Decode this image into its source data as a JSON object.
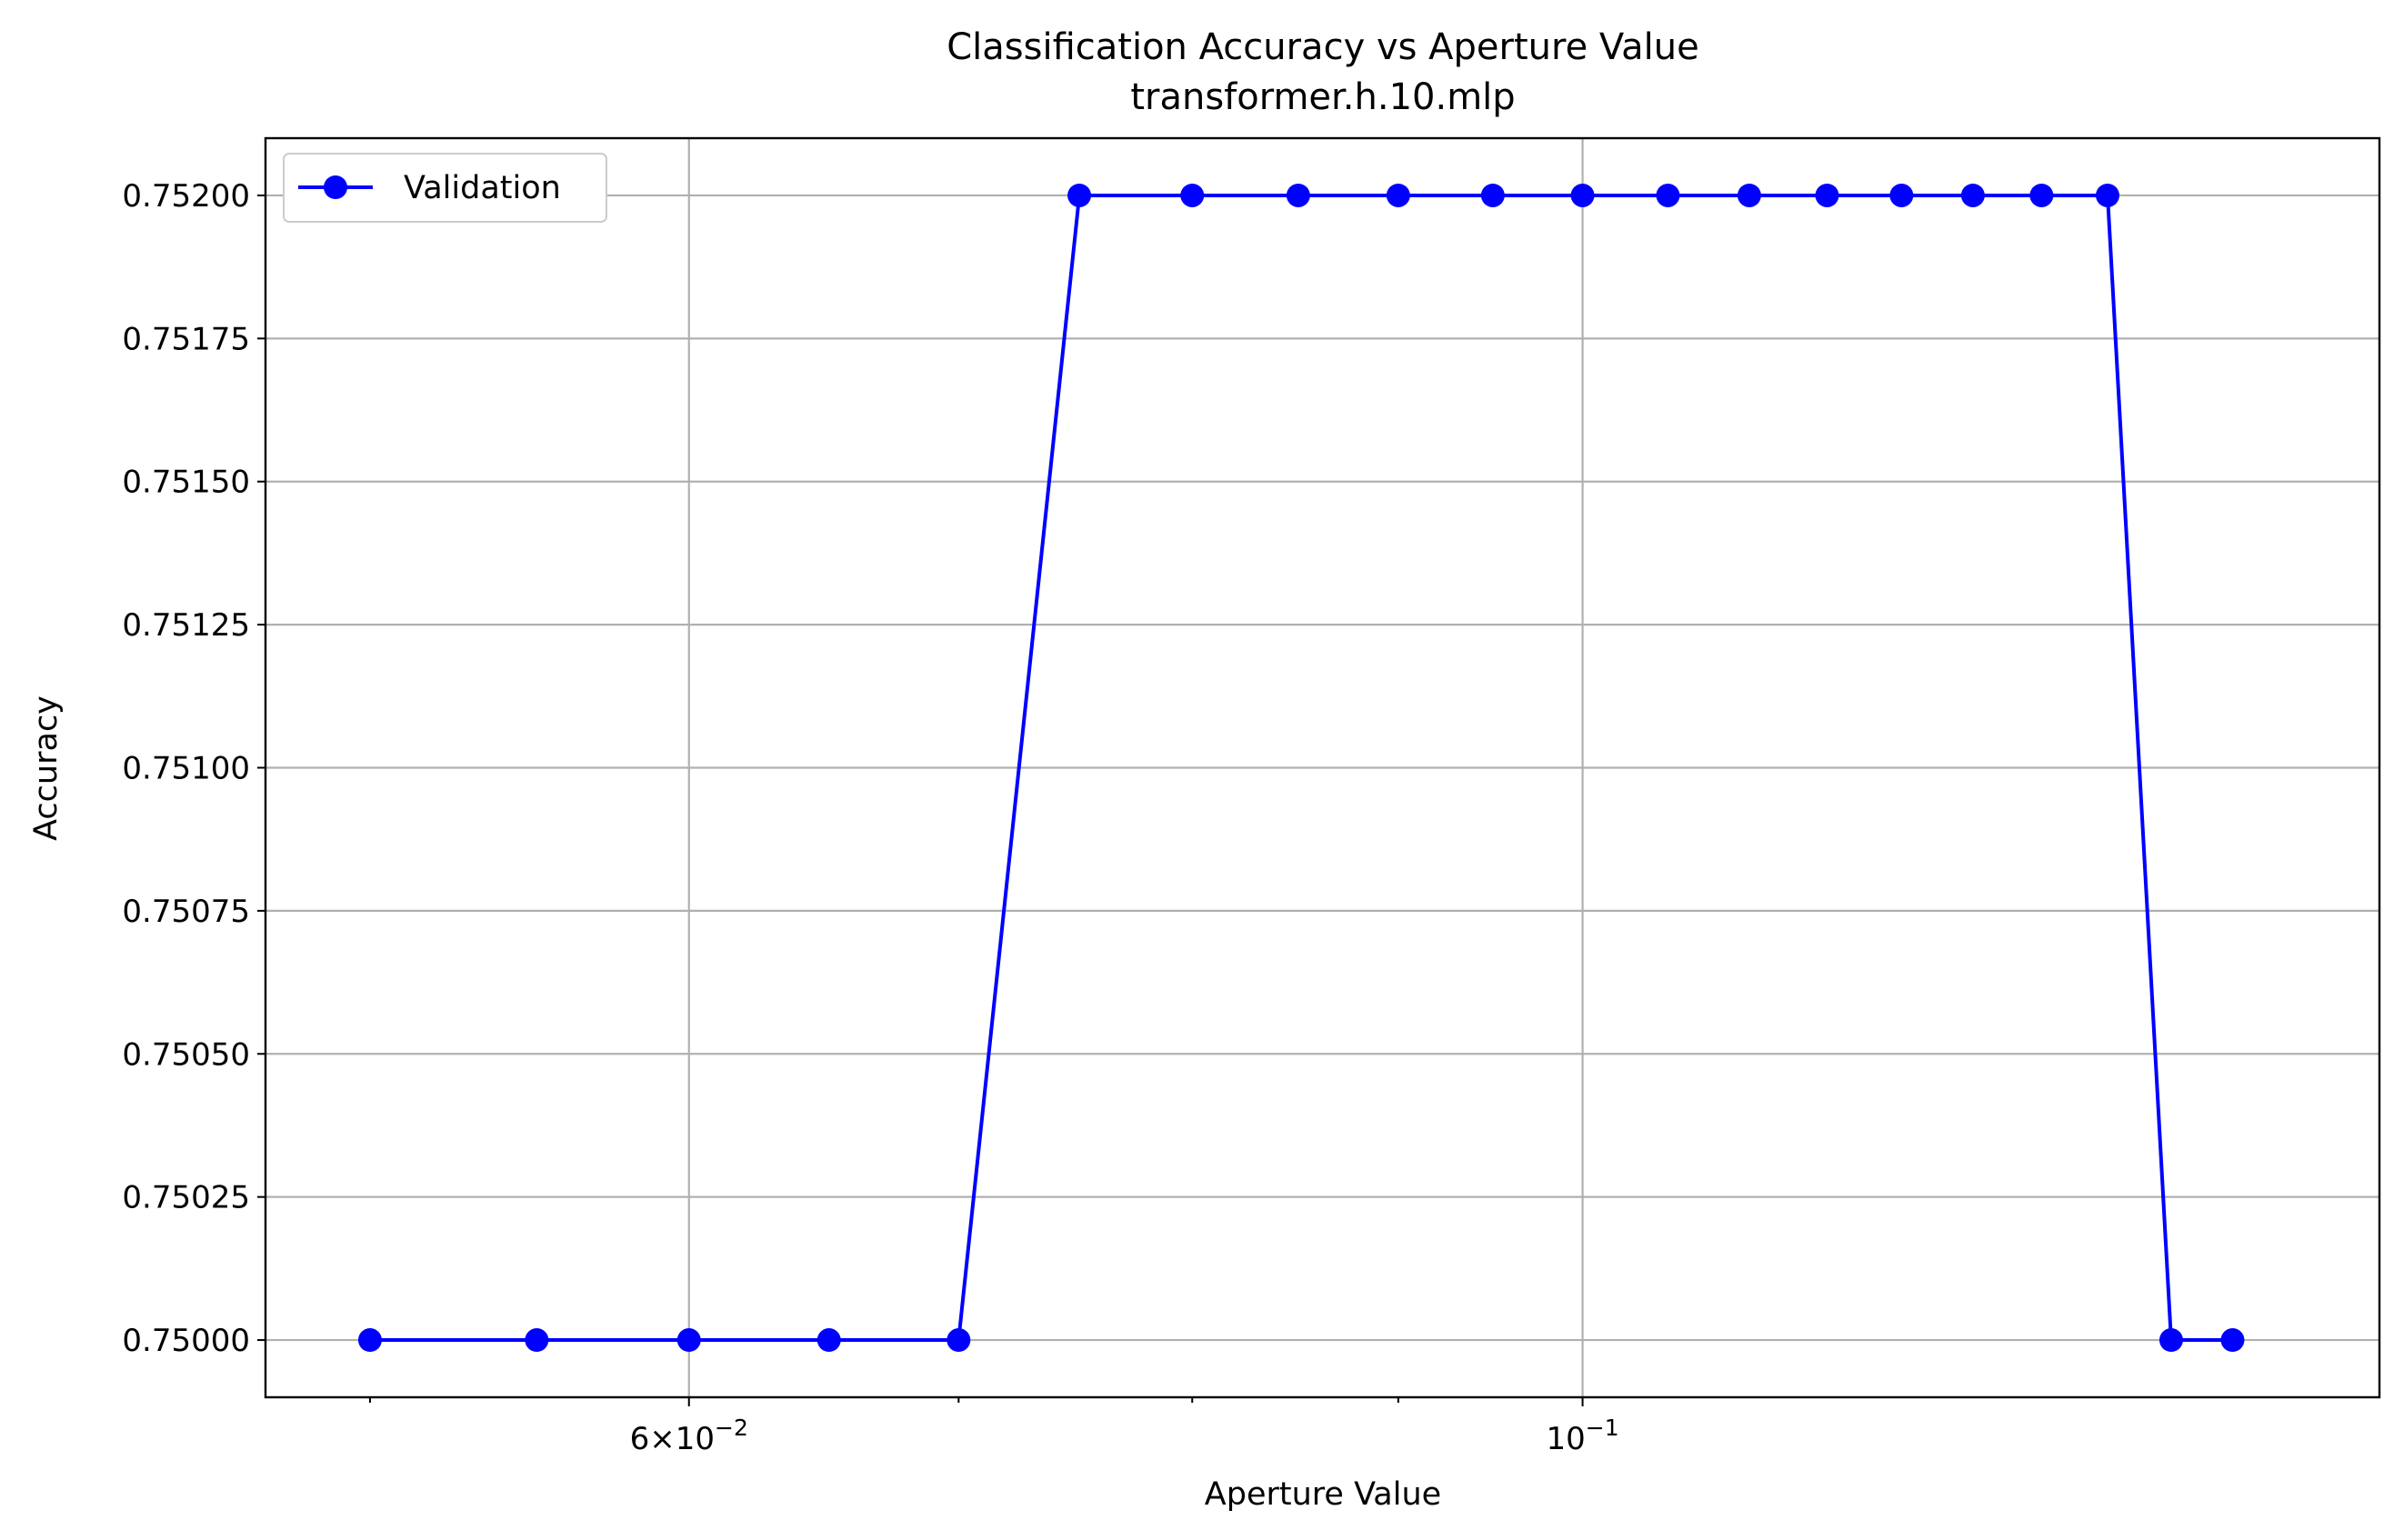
{
  "chart_data": {
    "type": "line",
    "title": "Classification Accuracy vs Aperture Value",
    "subtitle": "transformer.h.10.mlp",
    "xlabel": "Aperture Value",
    "ylabel": "Accuracy",
    "x_scale": "log",
    "xlim": [
      0.0471,
      0.1577
    ],
    "ylim": [
      0.7499,
      0.7521
    ],
    "grid": true,
    "legend_position": "upper-left",
    "x_ticks": [
      {
        "value": 0.06,
        "base": "6×10",
        "exp": "−2"
      },
      {
        "value": 0.1,
        "base": "10",
        "exp": "−1"
      }
    ],
    "x_minor_ticks": [
      0.05,
      0.07,
      0.08,
      0.09
    ],
    "y_ticks": [
      {
        "value": 0.75,
        "label": "0.75000"
      },
      {
        "value": 0.75025,
        "label": "0.75025"
      },
      {
        "value": 0.7505,
        "label": "0.75050"
      },
      {
        "value": 0.75075,
        "label": "0.75075"
      },
      {
        "value": 0.751,
        "label": "0.75100"
      },
      {
        "value": 0.75125,
        "label": "0.75125"
      },
      {
        "value": 0.7515,
        "label": "0.75150"
      },
      {
        "value": 0.75175,
        "label": "0.75175"
      },
      {
        "value": 0.752,
        "label": "0.75200"
      }
    ],
    "series": [
      {
        "name": "Validation",
        "color": "#0000ff",
        "marker": "circle",
        "x": [
          0.05,
          0.055,
          0.06,
          0.065,
          0.07,
          0.075,
          0.08,
          0.085,
          0.09,
          0.095,
          0.1,
          0.105,
          0.11,
          0.115,
          0.12,
          0.125,
          0.13,
          0.135,
          0.14,
          0.145
        ],
        "y": [
          0.75,
          0.75,
          0.75,
          0.75,
          0.75,
          0.752,
          0.752,
          0.752,
          0.752,
          0.752,
          0.752,
          0.752,
          0.752,
          0.752,
          0.752,
          0.752,
          0.752,
          0.752,
          0.75,
          0.75
        ]
      }
    ]
  }
}
